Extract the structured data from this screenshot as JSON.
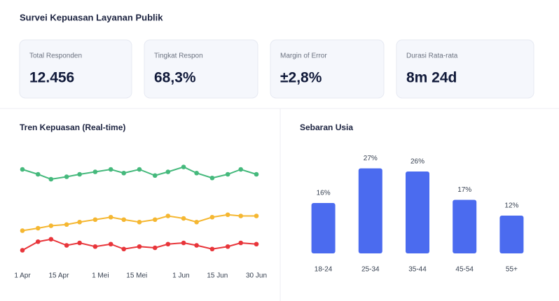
{
  "title": "Survei Kepuasan Layanan Publik",
  "kpis": [
    {
      "label": "Total Responden",
      "value": "12.456"
    },
    {
      "label": "Tingkat Respon",
      "value": "68,3%"
    },
    {
      "label": "Margin of Error",
      "value": "±2,8%"
    },
    {
      "label": "Durasi Rata-rata",
      "value": "8m 24d"
    }
  ],
  "chart_data": [
    {
      "type": "line",
      "title": "Tren Kepuasan (Real-time)",
      "x": [
        0,
        6,
        11,
        17,
        22,
        28,
        34,
        39,
        45,
        51,
        56,
        62,
        67,
        73,
        79,
        84,
        90
      ],
      "xlim": [
        0,
        90
      ],
      "xticks": [
        {
          "value": 0,
          "label": "1 Apr"
        },
        {
          "value": 14,
          "label": "15 Apr"
        },
        {
          "value": 30,
          "label": "1 Mei"
        },
        {
          "value": 44,
          "label": "15 Mei"
        },
        {
          "value": 61,
          "label": "1 Jun"
        },
        {
          "value": 75,
          "label": "15 Jun"
        },
        {
          "value": 90,
          "label": "30 Jun"
        }
      ],
      "ylim": [
        0,
        100
      ],
      "series": [
        {
          "color": "#45b97c",
          "values": [
            76,
            72,
            68,
            70,
            72,
            74,
            76,
            73,
            76,
            71,
            74,
            78,
            73,
            69,
            72,
            76,
            72
          ]
        },
        {
          "color": "#f5b731",
          "values": [
            26,
            28,
            30,
            31,
            33,
            35,
            37,
            35,
            33,
            35,
            38,
            36,
            33,
            37,
            39,
            38,
            38
          ]
        },
        {
          "color": "#e8353a",
          "values": [
            10,
            17,
            19,
            14,
            16,
            13,
            15,
            11,
            13,
            12,
            15,
            16,
            14,
            11,
            13,
            16,
            15
          ]
        }
      ]
    },
    {
      "type": "bar",
      "title": "Sebaran Usia",
      "categories": [
        "18-24",
        "25-34",
        "35-44",
        "45-54",
        "55+"
      ],
      "values": [
        16,
        27,
        26,
        17,
        12
      ],
      "value_labels": [
        "16%",
        "27%",
        "26%",
        "17%",
        "12%"
      ],
      "color": "#4b6bef",
      "ylim": [
        0,
        30
      ]
    }
  ]
}
